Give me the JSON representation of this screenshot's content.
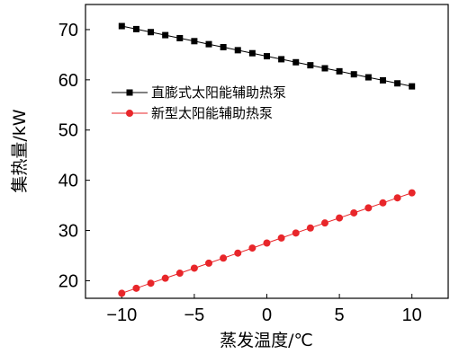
{
  "chart_data": {
    "type": "line",
    "title": "",
    "xlabel": "蒸发温度/℃",
    "ylabel": "集热量/kW",
    "xlim": [
      -12.5,
      12.5
    ],
    "ylim": [
      16.5,
      75
    ],
    "x_ticks": [
      "−10",
      "−5",
      "0",
      "5",
      "10"
    ],
    "x_tick_values": [
      -10,
      -5,
      0,
      5,
      10
    ],
    "y_ticks": [
      "20",
      "30",
      "40",
      "50",
      "60",
      "70"
    ],
    "y_tick_values": [
      20,
      30,
      40,
      50,
      60,
      70
    ],
    "grid": false,
    "legend_position": "upper-left",
    "x": [
      -10,
      -9,
      -8,
      -7,
      -6,
      -5,
      -4,
      -3,
      -2,
      -1,
      0,
      1,
      2,
      3,
      4,
      5,
      6,
      7,
      8,
      9,
      10
    ],
    "series": [
      {
        "name": "直膨式太阳能辅助热泵",
        "marker": "square",
        "color": "#000000",
        "values": [
          70.7,
          70.1,
          69.5,
          68.9,
          68.3,
          67.7,
          67.1,
          66.5,
          65.9,
          65.3,
          64.7,
          64.1,
          63.5,
          62.9,
          62.3,
          61.7,
          61.1,
          60.5,
          59.9,
          59.3,
          58.7
        ]
      },
      {
        "name": "新型太阳能辅助热泵",
        "marker": "circle",
        "color": "#e8262a",
        "values": [
          17.5,
          18.5,
          19.5,
          20.5,
          21.5,
          22.5,
          23.5,
          24.5,
          25.5,
          26.5,
          27.5,
          28.5,
          29.5,
          30.5,
          31.5,
          32.5,
          33.5,
          34.5,
          35.5,
          36.5,
          37.5
        ]
      }
    ]
  }
}
